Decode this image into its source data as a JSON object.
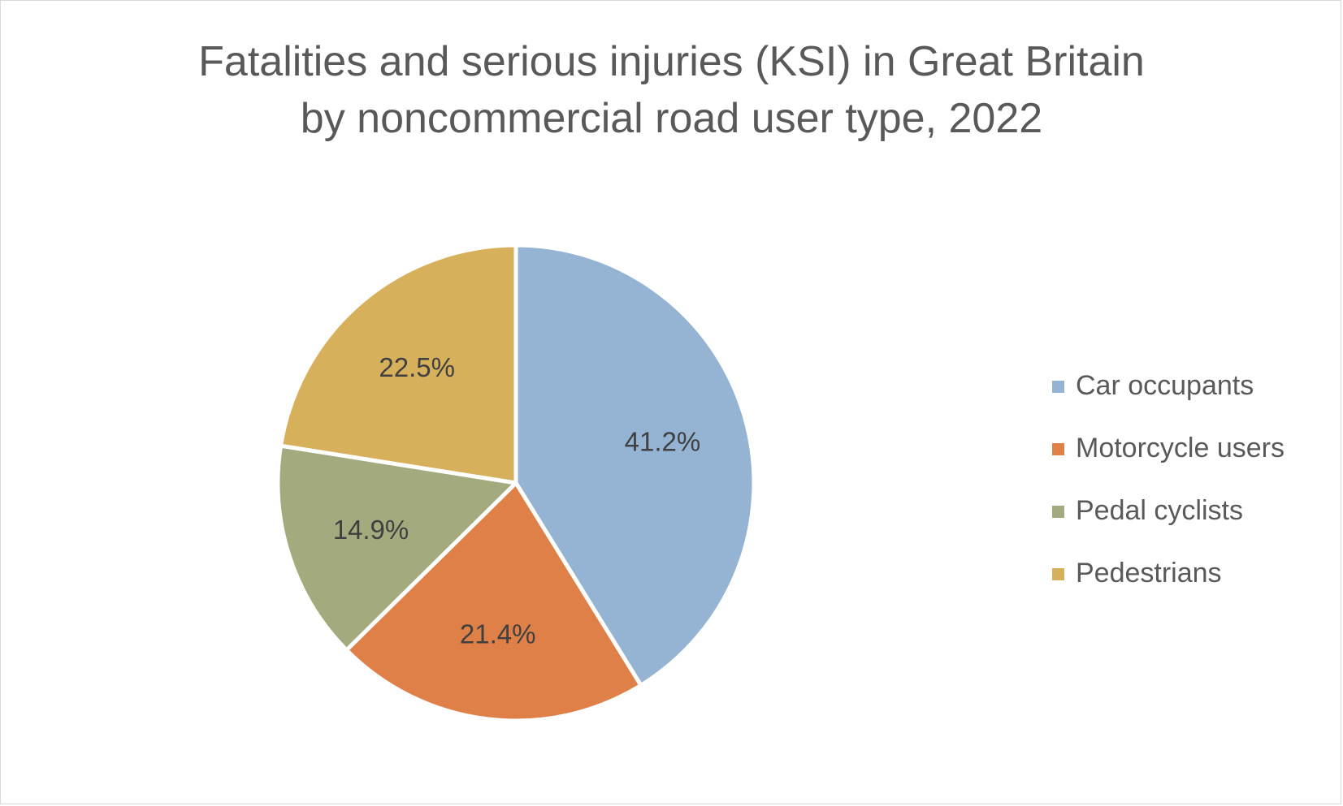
{
  "chart_data": {
    "type": "pie",
    "title_lines": [
      "Fatalities and serious injuries (KSI) in Great Britain",
      "by noncommercial road user type, 2022"
    ],
    "categories": [
      "Car occupants",
      "Motorcycle users",
      "Pedal cyclists",
      "Pedestrians"
    ],
    "values": [
      41.2,
      21.4,
      14.9,
      22.5
    ],
    "data_labels": [
      "41.2%",
      "21.4%",
      "14.9%",
      "22.5%"
    ],
    "colors": [
      "#95b3d3",
      "#df8048",
      "#a3aa7e",
      "#d7b05c"
    ],
    "legend_position": "right",
    "start_angle": "12 o'clock",
    "direction": "clockwise"
  }
}
